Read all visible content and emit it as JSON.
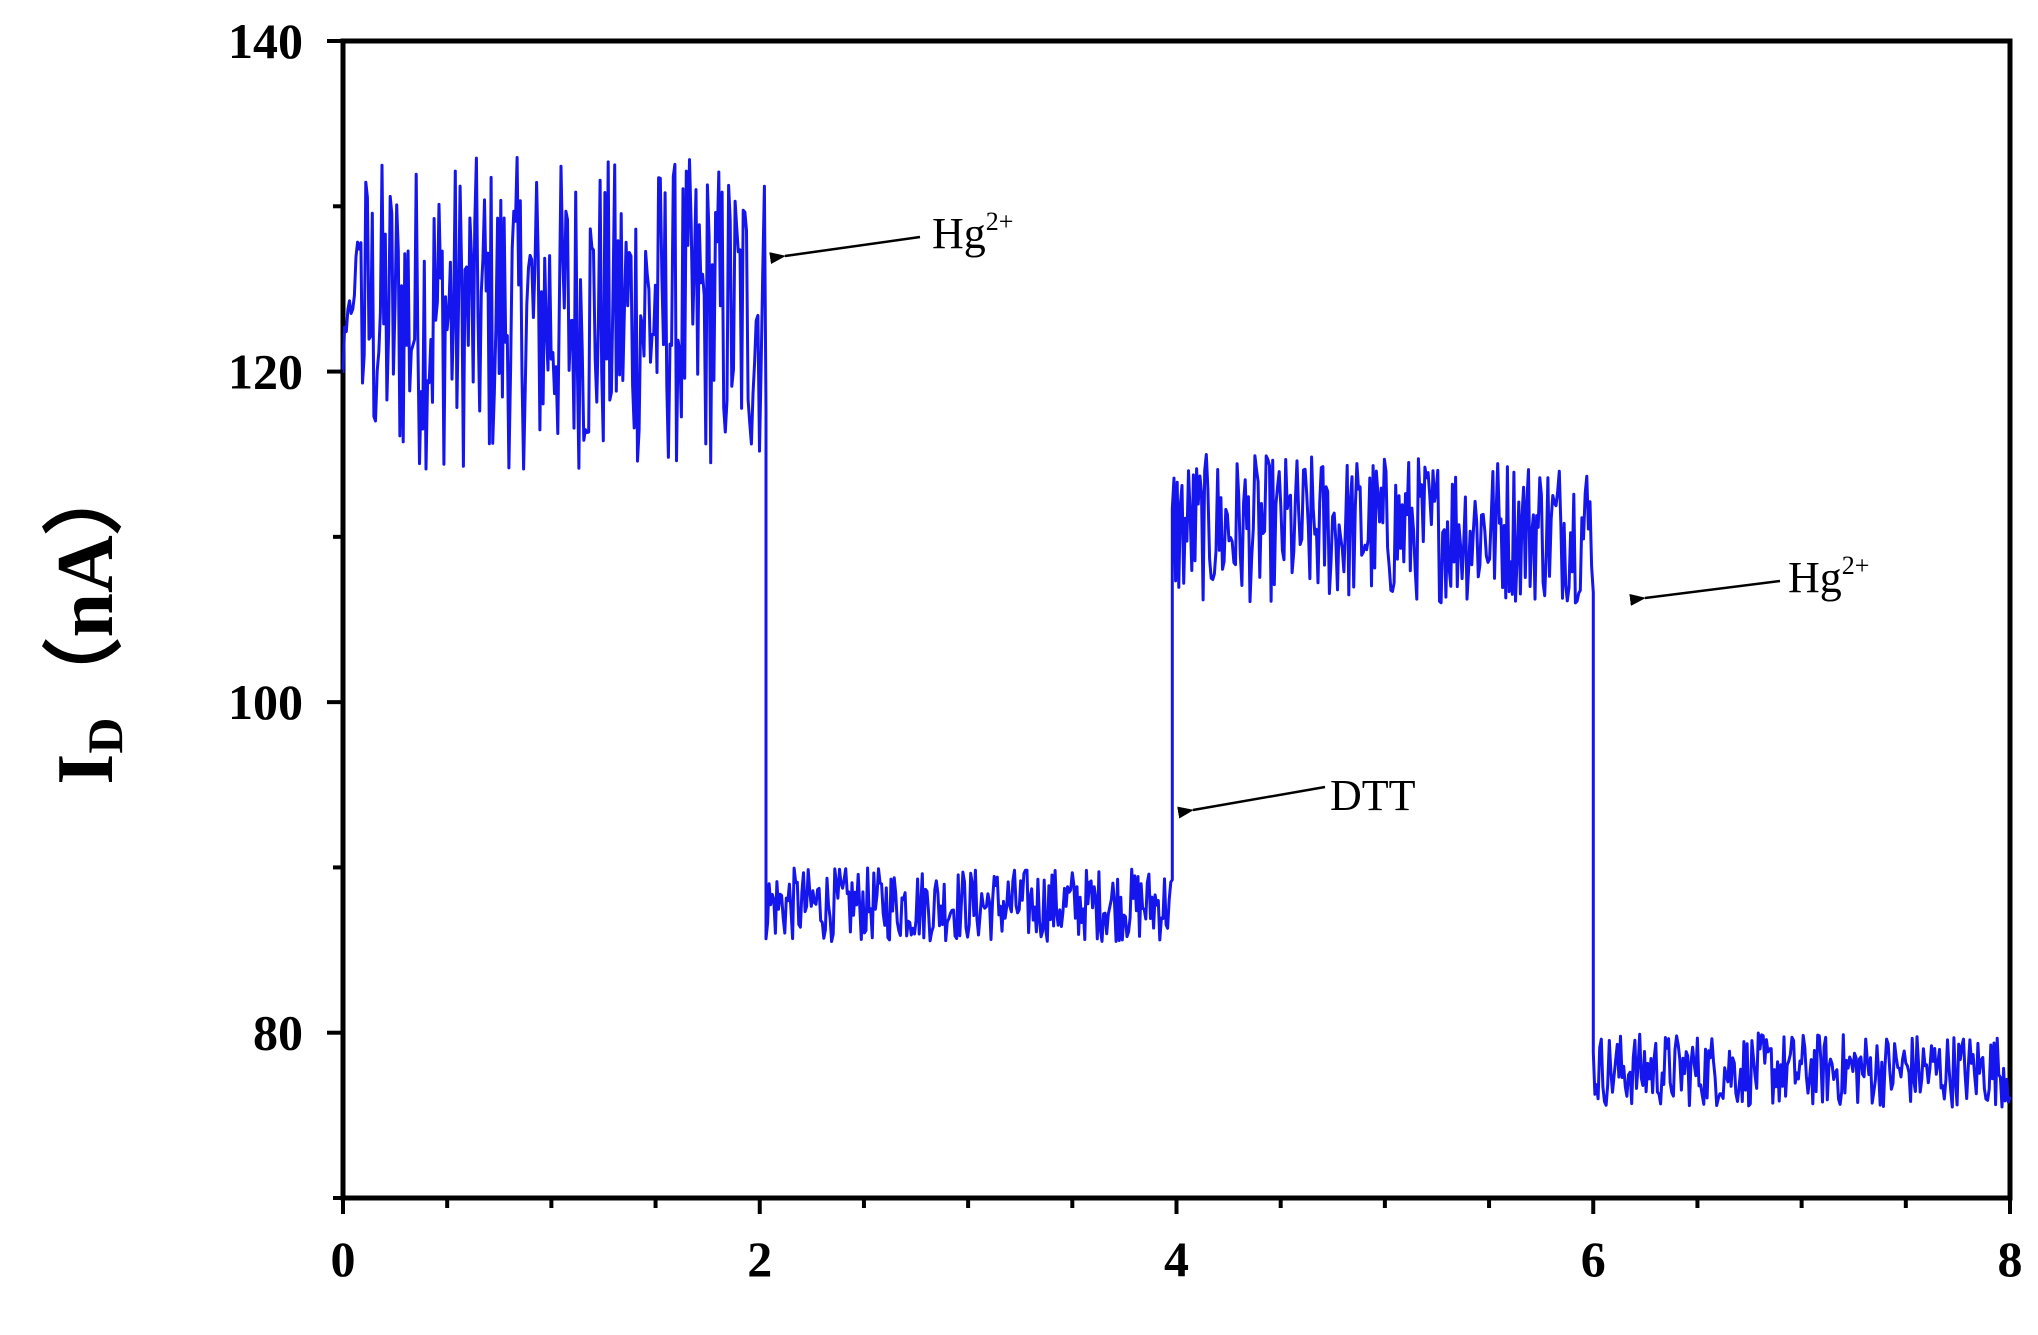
{
  "chart_data": {
    "type": "line",
    "title": "",
    "xlabel": "",
    "ylabel": {
      "main": "I",
      "subscript": "D",
      "unit": "（nA）"
    },
    "xlim": [
      0,
      8
    ],
    "ylim": [
      70,
      140
    ],
    "x_ticks": [
      0,
      2,
      4,
      6,
      8
    ],
    "y_ticks": [
      80,
      100,
      120,
      140
    ],
    "grid": false,
    "line_color": "#1515ee",
    "segments": [
      {
        "x_start": 0,
        "x_end": 2.03,
        "mean": 122.5,
        "low": 114,
        "high": 133
      },
      {
        "x_start": 2.03,
        "x_end": 3.98,
        "mean": 88,
        "low": 85.5,
        "high": 90
      },
      {
        "x_start": 3.98,
        "x_end": 6.0,
        "mean": 109.5,
        "low": 106,
        "high": 115
      },
      {
        "x_start": 6.0,
        "x_end": 8.0,
        "mean": 77.5,
        "low": 75.5,
        "high": 80
      }
    ],
    "annotations": [
      {
        "label": "Hg",
        "superscript": "2+",
        "x": 2.15,
        "y": 126.8
      },
      {
        "label": "DTT",
        "x": 4.1,
        "y": 94.0
      },
      {
        "label": "Hg",
        "superscript": "2+",
        "x": 6.25,
        "y": 106.5
      }
    ]
  }
}
